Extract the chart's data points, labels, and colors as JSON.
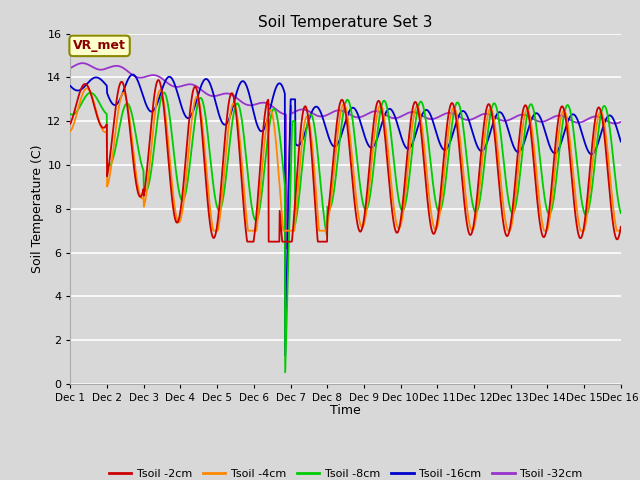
{
  "title": "Soil Temperature Set 3",
  "xlabel": "Time",
  "ylabel": "Soil Temperature (C)",
  "ylim": [
    0,
    16
  ],
  "xlim": [
    0,
    15
  ],
  "yticks": [
    0,
    2,
    4,
    6,
    8,
    10,
    12,
    14,
    16
  ],
  "xtick_labels": [
    "Dec 1",
    "Dec 2",
    "Dec 3",
    "Dec 4",
    "Dec 5",
    "Dec 6",
    "Dec 7",
    "Dec 8",
    "Dec 9",
    "Dec 10",
    "Dec 11",
    "Dec 12",
    "Dec 13",
    "Dec 14",
    "Dec 15",
    "Dec 16"
  ],
  "bg_color": "#d8d8d8",
  "plot_bg_color": "#d8d8d8",
  "grid_color": "#ffffff",
  "colors": {
    "Tsoil -2cm": "#cc0000",
    "Tsoil -4cm": "#ff8800",
    "Tsoil -8cm": "#00cc00",
    "Tsoil -16cm": "#0000cc",
    "Tsoil -32cm": "#9933cc"
  },
  "annotation_text": "VR_met",
  "annotation_bg": "#ffffcc",
  "annotation_border": "#888800",
  "figsize": [
    6.4,
    4.8
  ],
  "dpi": 100
}
